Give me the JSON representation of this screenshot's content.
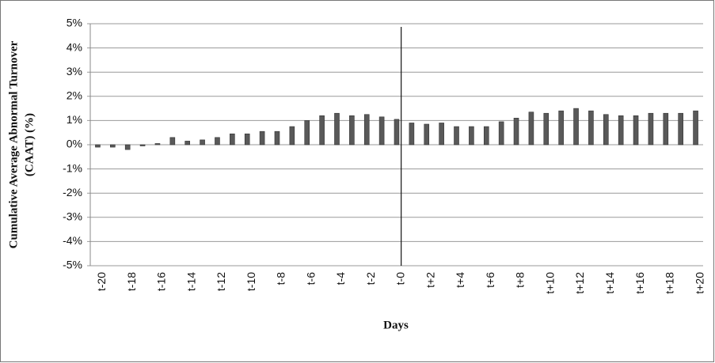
{
  "chart_data": {
    "type": "bar",
    "y_label": [
      "Cumulative Average Abnormal Turnover",
      "(CAAT) (%)"
    ],
    "x_label": "Days",
    "categories": [
      "t-20",
      null,
      "t-18",
      null,
      "t-16",
      null,
      "t-14",
      null,
      "t-12",
      null,
      "t-10",
      null,
      "t-8",
      null,
      "t-6",
      null,
      "t-4",
      null,
      "t-2",
      null,
      "t-0",
      null,
      "t+2",
      null,
      "t+4",
      null,
      "t+6",
      null,
      "t+8",
      null,
      "t+10",
      null,
      "t+12",
      null,
      "t+14",
      null,
      "t+16",
      null,
      "t+18",
      null,
      "t+20"
    ],
    "values": [
      -0.1,
      -0.1,
      -0.2,
      -0.05,
      0.05,
      0.3,
      0.15,
      0.2,
      0.3,
      0.45,
      0.45,
      0.55,
      0.55,
      0.75,
      1.0,
      1.2,
      1.3,
      1.2,
      1.25,
      1.15,
      1.05,
      0.9,
      0.85,
      0.9,
      0.75,
      0.75,
      0.75,
      0.95,
      1.1,
      1.35,
      1.3,
      1.4,
      1.5,
      1.4,
      1.25,
      1.2,
      1.2,
      1.3,
      1.3,
      1.3,
      1.4
    ],
    "color": "#595959",
    "ylim": [
      -5,
      5
    ],
    "yticks": [
      {
        "value": -5,
        "label": "-5%"
      },
      {
        "value": -4,
        "label": "-4%"
      },
      {
        "value": -3,
        "label": "-3%"
      },
      {
        "value": -2,
        "label": "-2%"
      },
      {
        "value": -1,
        "label": "-1%"
      },
      {
        "value": 0,
        "label": "0%"
      },
      {
        "value": 1,
        "label": "1%"
      },
      {
        "value": 2,
        "label": "2%"
      },
      {
        "value": 3,
        "label": "3%"
      },
      {
        "value": 4,
        "label": "4%"
      },
      {
        "value": 5,
        "label": "5%"
      }
    ],
    "grid": true
  }
}
